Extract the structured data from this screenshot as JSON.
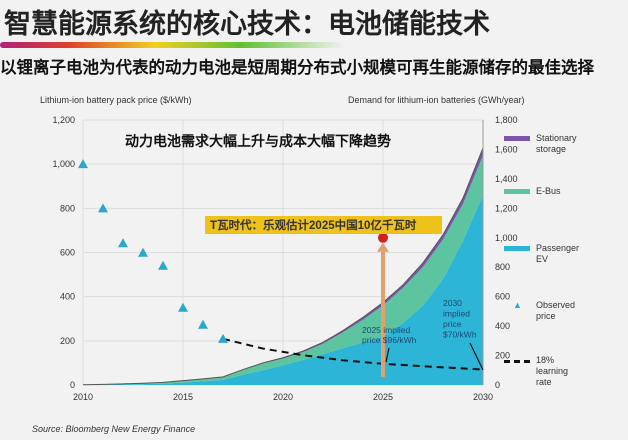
{
  "title": "智慧能源系统的核心技术：电池储能技术",
  "subtitle": "以锂离子电池为代表的动力电池是短周期分布式小规模可再生能源储存的最佳选择",
  "source": "Source: Bloomberg New Energy Finance",
  "chart_data": {
    "type": "area",
    "title": "动力电池需求大幅上升与成本大幅下降趋势",
    "annotation": "T瓦时代：乐观估计2025中国10亿千瓦时",
    "annotation_2025": "2025 implied price $96/kWh",
    "annotation_2030": "2030 implied price $70/kWh",
    "ylabel_left": "Lithium-ion battery pack price ($/kWh)",
    "ylabel_right": "Demand for lithium-ion batteries (GWh/year)",
    "ylim_left": [
      0,
      1200
    ],
    "ylim_right": [
      0,
      1800
    ],
    "xlim": [
      2010,
      2030
    ],
    "x_ticks": [
      "2010",
      "2015",
      "2020",
      "2025",
      "2030"
    ],
    "y_left_ticks": [
      "0",
      "200",
      "400",
      "600",
      "800",
      "1,000",
      "1,200"
    ],
    "y_right_ticks": [
      "0",
      "200",
      "400",
      "600",
      "800",
      "1,000",
      "1,200",
      "1,400",
      "1,600",
      "1,800"
    ],
    "grid": true,
    "legend_placement": "right",
    "x": [
      2010,
      2011,
      2012,
      2013,
      2014,
      2015,
      2016,
      2017,
      2018,
      2019,
      2020,
      2021,
      2022,
      2023,
      2024,
      2025,
      2026,
      2027,
      2028,
      2029,
      2030
    ],
    "series": [
      {
        "name": "Passenger EV",
        "color": "#2db5d8",
        "values": [
          1,
          2,
          4,
          6,
          9,
          16,
          25,
          35,
          70,
          100,
          135,
          170,
          210,
          250,
          290,
          330,
          420,
          540,
          720,
          980,
          1290
        ]
      },
      {
        "name": "E-Bus",
        "color": "#5cc5a0",
        "values": [
          1,
          2,
          4,
          6,
          9,
          14,
          17,
          20,
          34,
          48,
          44,
          53,
          70,
          108,
          153,
          211,
          240,
          262,
          268,
          250,
          270
        ]
      },
      {
        "name": "Stationary storage",
        "color": "#7b55a8",
        "values": [
          0,
          0,
          0,
          0,
          0,
          0,
          0,
          0,
          1,
          2,
          6,
          7,
          10,
          12,
          17,
          19,
          20,
          28,
          32,
          40,
          50
        ]
      }
    ],
    "observed_price": {
      "name": "Observed price",
      "color": "#2aa8c8",
      "x": [
        2010,
        2011,
        2012,
        2013,
        2014,
        2015,
        2016,
        2017
      ],
      "values": [
        1000,
        800,
        642,
        599,
        540,
        350,
        273,
        209
      ]
    },
    "learning_curve": {
      "name": "18% learning rate",
      "x": [
        2017,
        2019,
        2021,
        2023,
        2025,
        2027,
        2030
      ],
      "values": [
        209,
        165,
        135,
        112,
        96,
        85,
        70
      ]
    },
    "highlight_point": {
      "x": 2025,
      "value_right": 1000,
      "color": "#d02020"
    }
  }
}
